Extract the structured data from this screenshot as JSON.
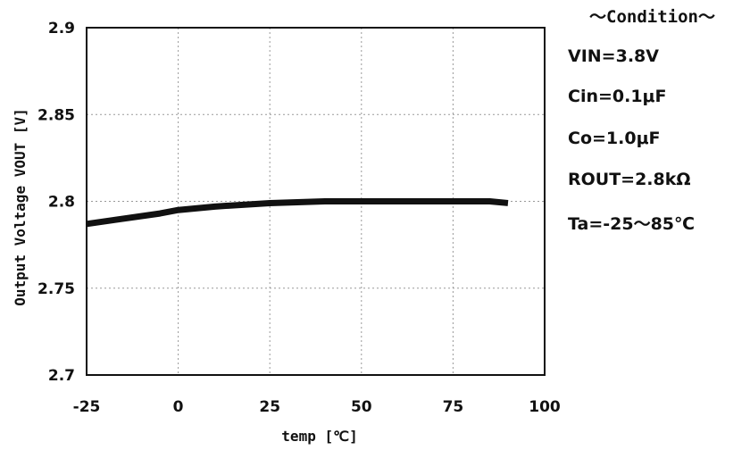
{
  "chart_data": {
    "type": "line",
    "title": "",
    "xlabel": "temp [℃]",
    "ylabel": "Output Voltage  VOUT [V]",
    "xlim": [
      -25,
      100
    ],
    "ylim": [
      2.7,
      2.9
    ],
    "xticks": [
      -25,
      0,
      25,
      50,
      75,
      100
    ],
    "yticks": [
      2.7,
      2.75,
      2.8,
      2.85,
      2.9
    ],
    "xtick_labels": [
      "-25",
      "0",
      "25",
      "50",
      "75",
      "100"
    ],
    "ytick_labels": [
      "2.7",
      "2.75",
      "2.8",
      "2.85",
      "2.9"
    ],
    "grid": true,
    "series": [
      {
        "x": [
          -25,
          -15,
          -5,
          0,
          10,
          25,
          40,
          50,
          60,
          75,
          85,
          90
        ],
        "y": [
          2.787,
          2.79,
          2.793,
          2.795,
          2.797,
          2.799,
          2.8,
          2.8,
          2.8,
          2.8,
          2.8,
          2.799
        ]
      }
    ],
    "line_color": "#111111"
  },
  "conditions": {
    "title": "～Condition～",
    "items": [
      "VIN=3.8V",
      "Cin=0.1μF",
      "Co=1.0μF",
      "ROUT=2.8kΩ",
      "Ta=-25～85℃"
    ]
  }
}
